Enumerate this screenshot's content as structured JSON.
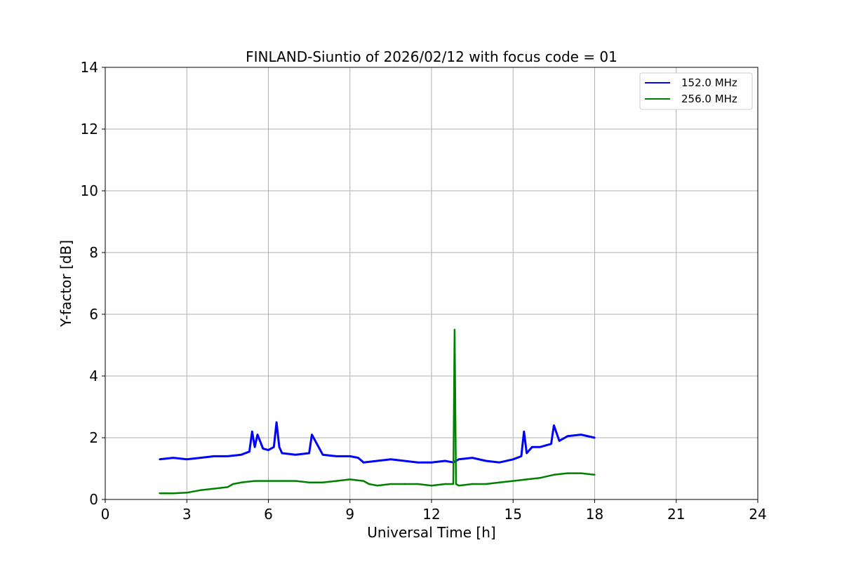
{
  "chart_data": {
    "type": "line",
    "title": "FINLAND-Siuntio of 2026/02/12 with focus code = 01",
    "xlabel": "Universal Time [h]",
    "ylabel": "Y-factor [dB]",
    "xlim": [
      0,
      24
    ],
    "ylim": [
      0,
      14
    ],
    "xticks": [
      0,
      3,
      6,
      9,
      12,
      15,
      18,
      21,
      24
    ],
    "yticks": [
      0,
      2,
      4,
      6,
      8,
      10,
      12,
      14
    ],
    "grid": true,
    "legend_position": "top-right",
    "series": [
      {
        "name": "152.0 MHz",
        "color": "#0000ff",
        "x": [
          2.0,
          2.5,
          3.0,
          3.5,
          4.0,
          4.5,
          5.0,
          5.3,
          5.4,
          5.5,
          5.6,
          5.8,
          6.0,
          6.2,
          6.3,
          6.4,
          6.5,
          7.0,
          7.5,
          7.6,
          8.0,
          8.5,
          9.0,
          9.3,
          9.5,
          10.0,
          10.5,
          11.0,
          11.5,
          12.0,
          12.5,
          12.8,
          13.0,
          13.5,
          14.0,
          14.5,
          15.0,
          15.3,
          15.4,
          15.5,
          15.7,
          16.0,
          16.4,
          16.5,
          16.7,
          17.0,
          17.5,
          18.0
        ],
        "y": [
          1.3,
          1.35,
          1.3,
          1.35,
          1.4,
          1.4,
          1.45,
          1.55,
          2.2,
          1.7,
          2.1,
          1.65,
          1.6,
          1.7,
          2.5,
          1.7,
          1.5,
          1.45,
          1.5,
          2.1,
          1.45,
          1.4,
          1.4,
          1.35,
          1.2,
          1.25,
          1.3,
          1.25,
          1.2,
          1.2,
          1.25,
          1.2,
          1.3,
          1.35,
          1.25,
          1.2,
          1.3,
          1.4,
          2.2,
          1.5,
          1.7,
          1.7,
          1.8,
          2.4,
          1.9,
          2.05,
          2.1,
          2.0
        ]
      },
      {
        "name": "256.0 MHz",
        "color": "#008000",
        "x": [
          2.0,
          2.5,
          3.0,
          3.5,
          4.0,
          4.5,
          4.7,
          5.0,
          5.5,
          6.0,
          6.5,
          7.0,
          7.5,
          8.0,
          8.5,
          9.0,
          9.5,
          9.7,
          10.0,
          10.5,
          11.0,
          11.5,
          12.0,
          12.5,
          12.8,
          12.85,
          12.9,
          13.0,
          13.5,
          14.0,
          14.5,
          15.0,
          15.5,
          16.0,
          16.5,
          17.0,
          17.5,
          18.0
        ],
        "y": [
          0.2,
          0.2,
          0.22,
          0.3,
          0.35,
          0.4,
          0.5,
          0.55,
          0.6,
          0.6,
          0.6,
          0.6,
          0.55,
          0.55,
          0.6,
          0.65,
          0.6,
          0.5,
          0.45,
          0.5,
          0.5,
          0.5,
          0.45,
          0.5,
          0.5,
          5.5,
          0.5,
          0.45,
          0.5,
          0.5,
          0.55,
          0.6,
          0.65,
          0.7,
          0.8,
          0.85,
          0.85,
          0.8
        ]
      }
    ]
  }
}
